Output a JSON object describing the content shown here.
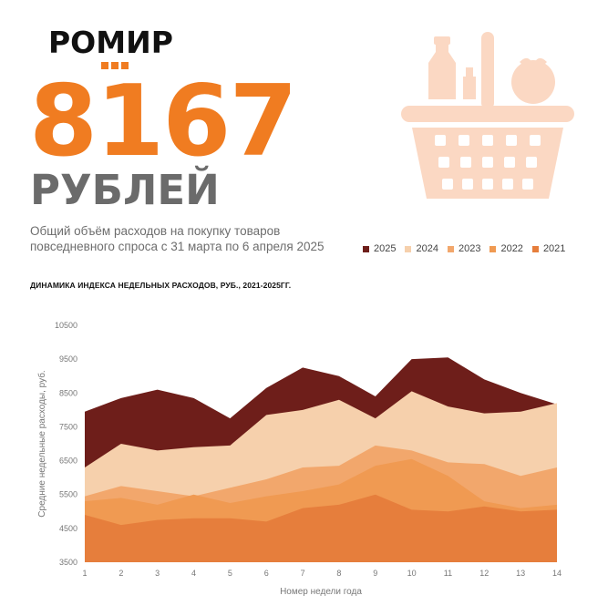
{
  "brand": {
    "name": "РОМИР"
  },
  "headline": {
    "value": "8167",
    "unit": "РУБЛЕЙ"
  },
  "description": "Общий объём расходов на покупку товаров повседневного спроса с 31 марта по 6 апреля 2025",
  "icon": "shopping-basket-icon",
  "colors": {
    "accent": "#f07c21",
    "2025": "#6e1e1a",
    "2024": "#f6d0ac",
    "2023": "#f2a76c",
    "2022": "#f09a52",
    "2021": "#e67e3c"
  },
  "chart_data": {
    "type": "area",
    "title": "ДИНАМИКА ИНДЕКСА НЕДЕЛЬНЫХ РАСХОДОВ, РУБ., 2021-2025ГГ.",
    "xlabel": "Номер недели года",
    "ylabel": "Средние недельные расходы, руб.",
    "x": [
      1,
      2,
      3,
      4,
      5,
      6,
      7,
      8,
      9,
      10,
      11,
      12,
      13,
      14
    ],
    "ylim": [
      3500,
      10500
    ],
    "yticks": [
      3500,
      4500,
      5500,
      6500,
      7500,
      8500,
      9500,
      10500
    ],
    "legend_position": "top-right",
    "grid": false,
    "series": [
      {
        "name": "2025",
        "color": "#6e1e1a",
        "values": [
          7950,
          8350,
          8600,
          8350,
          7750,
          8650,
          9250,
          9000,
          8400,
          9500,
          9550,
          8900,
          8500,
          8167
        ]
      },
      {
        "name": "2024",
        "color": "#f6d0ac",
        "values": [
          6300,
          7000,
          6800,
          6900,
          6950,
          7850,
          8000,
          8300,
          7750,
          8550,
          8100,
          7900,
          7950,
          8200
        ]
      },
      {
        "name": "2023",
        "color": "#f2a76c",
        "values": [
          5450,
          5750,
          5600,
          5450,
          5700,
          5950,
          6300,
          6350,
          6950,
          6800,
          6450,
          6400,
          6050,
          6300
        ]
      },
      {
        "name": "2022",
        "color": "#f09a52",
        "values": [
          5300,
          5400,
          5200,
          5500,
          5250,
          5450,
          5600,
          5800,
          6350,
          6550,
          6050,
          5300,
          5100,
          5200
        ]
      },
      {
        "name": "2021",
        "color": "#e67e3c",
        "values": [
          4900,
          4600,
          4750,
          4800,
          4800,
          4700,
          5100,
          5200,
          5500,
          5050,
          5000,
          5150,
          5000,
          5050
        ]
      }
    ]
  }
}
